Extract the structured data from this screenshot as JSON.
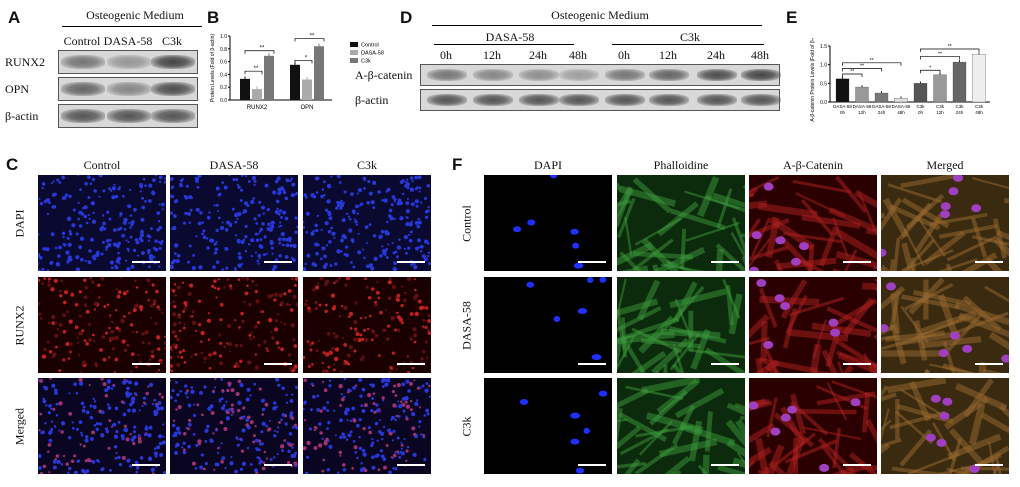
{
  "panels": {
    "A": "A",
    "B": "B",
    "C": "C",
    "D": "D",
    "E": "E",
    "F": "F"
  },
  "panelA": {
    "header": "Osteogenic Medium",
    "columns": [
      "Control",
      "DASA-58",
      "C3k"
    ],
    "rows": [
      "RUNX2",
      "OPN",
      "β-actin"
    ],
    "band_intensity": [
      [
        0.6,
        0.4,
        0.9
      ],
      [
        0.7,
        0.5,
        0.85
      ],
      [
        0.8,
        0.8,
        0.8
      ]
    ]
  },
  "panelD": {
    "header": "Osteogenic Medium",
    "groups": [
      "DASA-58",
      "C3k"
    ],
    "columns": [
      "0h",
      "12h",
      "24h",
      "48h",
      "0h",
      "12h",
      "24h",
      "48h"
    ],
    "rows": [
      "A-β-catenin",
      "β-actin"
    ],
    "band_intensity": [
      [
        0.6,
        0.5,
        0.45,
        0.35,
        0.6,
        0.7,
        0.85,
        0.9
      ],
      [
        0.8,
        0.8,
        0.8,
        0.8,
        0.8,
        0.8,
        0.8,
        0.8
      ]
    ]
  },
  "panelC": {
    "columns": [
      "Control",
      "DASA-58",
      "C3k"
    ],
    "rows": [
      "DAPI",
      "RUNX2",
      "Merged"
    ]
  },
  "panelF": {
    "columns": [
      "DAPI",
      "Phalloidine",
      "A-β-Catenin",
      "Merged"
    ],
    "rows": [
      "Control",
      "DASA-58",
      "C3k"
    ]
  },
  "chart_data": [
    {
      "type": "bar",
      "panel": "B",
      "categories": [
        "RUNX2",
        "OPN"
      ],
      "ylabel": "Protein Levels (Fold of β-actin)",
      "ylim": [
        0,
        1.0
      ],
      "yticks": [
        "0.0",
        "0.2",
        "0.4",
        "0.6",
        "0.8",
        "1.0"
      ],
      "legend_position": "right",
      "series": [
        {
          "name": "Control",
          "values": [
            0.33,
            0.55
          ],
          "color": "#111111"
        },
        {
          "name": "DASA-58",
          "values": [
            0.17,
            0.32
          ],
          "color": "#aaaaaa"
        },
        {
          "name": "C3k",
          "values": [
            0.69,
            0.84
          ],
          "color": "#777777"
        }
      ],
      "annotations": [
        "**",
        "**",
        "*",
        "**"
      ]
    },
    {
      "type": "bar",
      "panel": "E",
      "categories": [
        "DASA-58 0h",
        "DASA-58 12h",
        "DASA-58 24h",
        "DASA-58 48h",
        "C3k 0h",
        "C3k 12h",
        "C3k 24h",
        "C3k 48h"
      ],
      "ylabel": "A-β-catenin Protein Levels (Fold of β-actin)",
      "ylim": [
        0,
        1.5
      ],
      "yticks": [
        "0.0",
        "0.5",
        "1.0",
        "1.5"
      ],
      "values": [
        0.62,
        0.4,
        0.24,
        0.1,
        0.5,
        0.73,
        1.07,
        1.28
      ],
      "colors": [
        "#111111",
        "#999999",
        "#777777",
        "#dddddd",
        "#555555",
        "#999999",
        "#666666",
        "#eeeeee"
      ],
      "annotations": [
        "**",
        "**",
        "**",
        "*",
        "**",
        "**"
      ]
    }
  ]
}
